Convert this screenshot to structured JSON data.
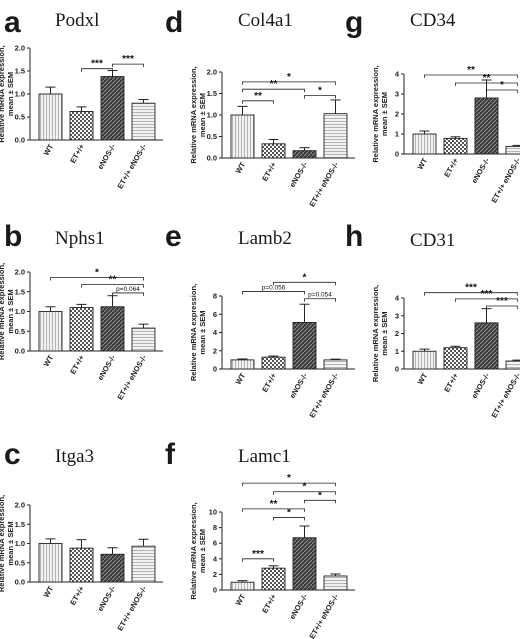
{
  "categories": [
    "WT",
    "ET+/+",
    "eNOS-/-",
    "ET+/+ eNOS-/-"
  ],
  "ylabel_line1": "Relative mRNA expression,",
  "ylabel_line2": "mean ± SEM",
  "chart_data": [
    {
      "panel": "a",
      "type": "bar",
      "title": "Podxl",
      "categories": [
        "WT",
        "ET+/+",
        "eNOS-/-",
        "ET+/+ eNOS-/-"
      ],
      "values": [
        1.0,
        0.62,
        1.38,
        0.8
      ],
      "errors": [
        0.15,
        0.1,
        0.13,
        0.08
      ],
      "ylim": [
        0,
        2.0
      ],
      "yticks": [
        0,
        0.5,
        1.0,
        1.5,
        2.0
      ],
      "annotations": [
        {
          "from": 1,
          "to": 2,
          "label": "***",
          "level": 1.55
        },
        {
          "from": 2,
          "to": 3,
          "label": "***",
          "level": 1.65
        }
      ]
    },
    {
      "panel": "d",
      "type": "bar",
      "title": "Col4a1",
      "categories": [
        "WT",
        "ET+/+",
        "eNOS-/-",
        "ET+/+ eNOS-/-"
      ],
      "values": [
        1.0,
        0.33,
        0.17,
        1.03
      ],
      "errors": [
        0.2,
        0.1,
        0.07,
        0.32
      ],
      "ylim": [
        0,
        2.0
      ],
      "yticks": [
        0,
        0.5,
        1.0,
        1.5,
        2.0
      ],
      "annotations": [
        {
          "from": 0,
          "to": 1,
          "label": "**",
          "level": 1.33
        },
        {
          "from": 2,
          "to": 3,
          "label": "*",
          "level": 1.45
        },
        {
          "from": 0,
          "to": 2,
          "label": "**",
          "level": 1.6
        },
        {
          "from": 0,
          "to": 3,
          "label": "*",
          "level": 1.77
        }
      ]
    },
    {
      "panel": "g",
      "type": "bar",
      "title": "CD34",
      "categories": [
        "WT",
        "ET+/+",
        "eNOS-/-",
        "ET+/+ eNOS-/-"
      ],
      "values": [
        1.0,
        0.78,
        2.8,
        0.38
      ],
      "errors": [
        0.15,
        0.08,
        0.9,
        0.05
      ],
      "ylim": [
        0,
        4
      ],
      "yticks": [
        0,
        1,
        2,
        3,
        4
      ],
      "annotations": [
        {
          "from": 2,
          "to": 3,
          "label": "*",
          "level": 3.2
        },
        {
          "from": 1,
          "to": 3,
          "label": "**",
          "level": 3.55
        },
        {
          "from": 0,
          "to": 3,
          "label": "**",
          "level": 3.95
        }
      ]
    },
    {
      "panel": "b",
      "type": "bar",
      "title": "Nphs1",
      "categories": [
        "WT",
        "ET+/+",
        "eNOS-/-",
        "ET+/+ eNOS-/-"
      ],
      "values": [
        1.0,
        1.1,
        1.12,
        0.58
      ],
      "errors": [
        0.12,
        0.08,
        0.28,
        0.1
      ],
      "ylim": [
        0,
        2.0
      ],
      "yticks": [
        0,
        0.5,
        1.0,
        1.5,
        2.0
      ],
      "annotations": [
        {
          "from": 2,
          "to": 3,
          "label": "p=0.064",
          "level": 1.47
        },
        {
          "from": 1,
          "to": 3,
          "label": "**",
          "level": 1.68
        },
        {
          "from": 0,
          "to": 3,
          "label": "*",
          "level": 1.86
        }
      ]
    },
    {
      "panel": "e",
      "type": "bar",
      "title": "Lamb2",
      "categories": [
        "WT",
        "ET+/+",
        "eNOS-/-",
        "ET+/+ eNOS-/-"
      ],
      "values": [
        1.0,
        1.3,
        5.1,
        1.0
      ],
      "errors": [
        0.1,
        0.12,
        2.0,
        0.08
      ],
      "ylim": [
        0,
        8
      ],
      "yticks": [
        0,
        2,
        4,
        6,
        8
      ],
      "annotations": [
        {
          "from": 2,
          "to": 3,
          "label": "p=0.054",
          "level": 7.7
        },
        {
          "from": 0,
          "to": 2,
          "label": "p=0.056",
          "level": 8.5
        },
        {
          "from": 1,
          "to": 3,
          "label": "*",
          "level": 9.5
        }
      ]
    },
    {
      "panel": "h",
      "type": "bar",
      "title": "CD31",
      "categories": [
        "WT",
        "ET+/+",
        "eNOS-/-",
        "ET+/+ eNOS-/-"
      ],
      "values": [
        1.0,
        1.2,
        2.6,
        0.45
      ],
      "errors": [
        0.12,
        0.08,
        0.8,
        0.05
      ],
      "ylim": [
        0,
        4
      ],
      "yticks": [
        0,
        1,
        2,
        3,
        4
      ],
      "annotations": [
        {
          "from": 2,
          "to": 3,
          "label": "***",
          "level": 3.55
        },
        {
          "from": 1,
          "to": 3,
          "label": "***",
          "level": 3.95
        },
        {
          "from": 0,
          "to": 3,
          "label": "***",
          "level": 4.3
        }
      ]
    },
    {
      "panel": "c",
      "type": "bar",
      "title": "Itga3",
      "categories": [
        "WT",
        "ET+/+",
        "eNOS-/-",
        "ET+/+ eNOS-/-"
      ],
      "values": [
        1.0,
        0.88,
        0.72,
        0.93
      ],
      "errors": [
        0.12,
        0.22,
        0.17,
        0.18
      ],
      "ylim": [
        0,
        2.0
      ],
      "yticks": [
        0,
        0.5,
        1.0,
        1.5,
        2.0
      ],
      "annotations": []
    },
    {
      "panel": "f",
      "type": "bar",
      "title": "Lamc1",
      "categories": [
        "WT",
        "ET+/+",
        "eNOS-/-",
        "ET+/+ eNOS-/-"
      ],
      "values": [
        1.0,
        2.8,
        6.7,
        1.8
      ],
      "errors": [
        0.2,
        0.3,
        1.5,
        0.25
      ],
      "ylim": [
        0,
        10
      ],
      "yticks": [
        0,
        2,
        4,
        6,
        8,
        10
      ],
      "annotations": [
        {
          "from": 0,
          "to": 1,
          "label": "***",
          "level": 4.0
        },
        {
          "from": 1,
          "to": 2,
          "label": "*",
          "level": 9.3
        },
        {
          "from": 0,
          "to": 2,
          "label": "**",
          "level": 10.4
        },
        {
          "from": 2,
          "to": 3,
          "label": "*",
          "level": 11.5
        },
        {
          "from": 1,
          "to": 3,
          "label": "*",
          "level": 12.6
        },
        {
          "from": 0,
          "to": 3,
          "label": "*",
          "level": 13.7
        }
      ]
    }
  ],
  "colors": {
    "bar_fill_light": "#ececec",
    "bar_fill_dark": "#444444",
    "axis": "#222222"
  }
}
